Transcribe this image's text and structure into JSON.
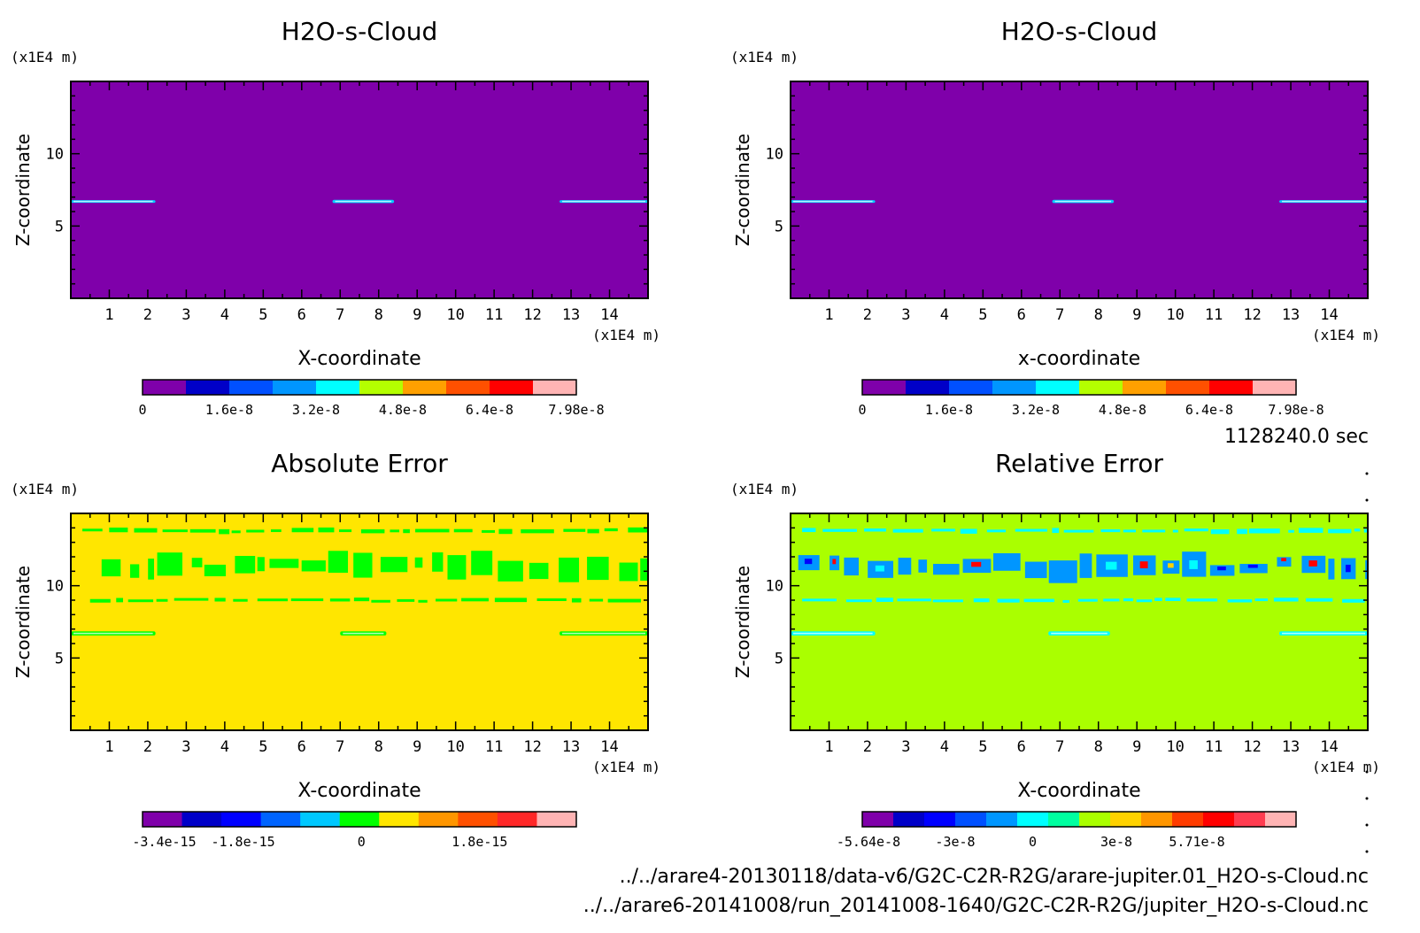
{
  "chart_data": [
    {
      "type": "heatmap",
      "title": "H2O-s-Cloud",
      "xlabel": "X-coordinate",
      "ylabel": "Z-coordinate",
      "x_unit": "(x1E4 m)",
      "y_unit": "(x1E4 m)",
      "xlim": [
        0,
        15
      ],
      "ylim": [
        0,
        15
      ],
      "x_ticks": [
        "1",
        "2",
        "3",
        "4",
        "5",
        "6",
        "7",
        "8",
        "9",
        "10",
        "11",
        "12",
        "13",
        "14"
      ],
      "y_ticks": [
        "5",
        "10"
      ],
      "background": "#7f00aa",
      "colorbar": {
        "colors": [
          "#7f00aa",
          "#0000c8",
          "#0050ff",
          "#0096ff",
          "#00ffff",
          "#b4ff00",
          "#ffa000",
          "#ff5000",
          "#ff0000",
          "#ffb4b4"
        ],
        "labels": [
          "0",
          "1.6e-8",
          "3.2e-8",
          "4.8e-8",
          "6.4e-8",
          "7.98e-8"
        ],
        "label_pos": [
          0,
          2,
          4,
          6,
          8,
          10
        ]
      },
      "features": [
        {
          "x0": 0,
          "x1": 2.2,
          "z": 6.7,
          "thick": 0.18,
          "color": "#00ccff"
        },
        {
          "x0": 6.8,
          "x1": 8.4,
          "z": 6.7,
          "thick": 0.22,
          "color": "#00ccff"
        },
        {
          "x0": 12.7,
          "x1": 15,
          "z": 6.7,
          "thick": 0.18,
          "color": "#00ccff"
        }
      ]
    },
    {
      "type": "heatmap",
      "title": "H2O-s-Cloud",
      "xlabel": "x-coordinate",
      "ylabel": "Z-coordinate",
      "x_unit": "(x1E4 m)",
      "y_unit": "(x1E4 m)",
      "xlim": [
        0,
        15
      ],
      "ylim": [
        0,
        15
      ],
      "x_ticks": [
        "1",
        "2",
        "3",
        "4",
        "5",
        "6",
        "7",
        "8",
        "9",
        "10",
        "11",
        "12",
        "13",
        "14"
      ],
      "y_ticks": [
        "5",
        "10"
      ],
      "background": "#7f00aa",
      "colorbar": {
        "colors": [
          "#7f00aa",
          "#0000c8",
          "#0050ff",
          "#0096ff",
          "#00ffff",
          "#b4ff00",
          "#ffa000",
          "#ff5000",
          "#ff0000",
          "#ffb4b4"
        ],
        "labels": [
          "0",
          "1.6e-8",
          "3.2e-8",
          "4.8e-8",
          "6.4e-8",
          "7.98e-8"
        ],
        "label_pos": [
          0,
          2,
          4,
          6,
          8,
          10
        ]
      },
      "features": [
        {
          "x0": 0,
          "x1": 2.2,
          "z": 6.7,
          "thick": 0.18,
          "color": "#00ccff"
        },
        {
          "x0": 6.8,
          "x1": 8.4,
          "z": 6.7,
          "thick": 0.22,
          "color": "#00ccff"
        },
        {
          "x0": 12.7,
          "x1": 15,
          "z": 6.7,
          "thick": 0.18,
          "color": "#00ccff"
        }
      ]
    },
    {
      "type": "heatmap",
      "title": "Absolute Error",
      "xlabel": "X-coordinate",
      "ylabel": "Z-coordinate",
      "x_unit": "(x1E4 m)",
      "y_unit": "(x1E4 m)",
      "xlim": [
        0,
        15
      ],
      "ylim": [
        0,
        15
      ],
      "x_ticks": [
        "1",
        "2",
        "3",
        "4",
        "5",
        "6",
        "7",
        "8",
        "9",
        "10",
        "11",
        "12",
        "13",
        "14"
      ],
      "y_ticks": [
        "5",
        "10"
      ],
      "background": "#ffe600",
      "colorbar": {
        "colors": [
          "#7f00aa",
          "#0000c8",
          "#0000ff",
          "#0064ff",
          "#00c8ff",
          "#00ff00",
          "#ffe600",
          "#ff9600",
          "#ff5000",
          "#ff2828",
          "#ffb4b4"
        ],
        "labels": [
          "-3.4e-15",
          "-1.8e-15",
          "0",
          "1.8e-15"
        ],
        "label_pos": [
          0.55,
          2.55,
          5.55,
          8.55
        ]
      },
      "features": [
        {
          "x0": 0.3,
          "x1": 15,
          "z": 13.8,
          "thick": 0.35,
          "color": "#00ff00",
          "broken": true
        },
        {
          "x0": 0.8,
          "x1": 15,
          "z": 11.3,
          "thick": 1.8,
          "color": "#00ff00",
          "broken": true
        },
        {
          "x0": 0.5,
          "x1": 15,
          "z": 9.0,
          "thick": 0.3,
          "color": "#00ff00",
          "broken": true
        },
        {
          "x0": 0,
          "x1": 2.2,
          "z": 6.7,
          "thick": 0.28,
          "color": "#00ff00"
        },
        {
          "x0": 7.0,
          "x1": 8.2,
          "z": 6.7,
          "thick": 0.28,
          "color": "#00ff00"
        },
        {
          "x0": 12.7,
          "x1": 15,
          "z": 6.7,
          "thick": 0.28,
          "color": "#00ff00"
        }
      ]
    },
    {
      "type": "heatmap",
      "title": "Relative Error",
      "xlabel": "X-coordinate",
      "ylabel": "Z-coordinate",
      "x_unit": "(x1E4 m)",
      "y_unit": "(x1E4 m)",
      "xlim": [
        0,
        15
      ],
      "ylim": [
        0,
        15
      ],
      "x_ticks": [
        "1",
        "2",
        "3",
        "4",
        "5",
        "6",
        "7",
        "8",
        "9",
        "10",
        "11",
        "12",
        "13",
        "14"
      ],
      "y_ticks": [
        "5",
        "10"
      ],
      "background": "#aaff00",
      "colorbar": {
        "colors": [
          "#7f00aa",
          "#0000c8",
          "#0000ff",
          "#0050ff",
          "#0096ff",
          "#00ffff",
          "#00ffa0",
          "#aaff00",
          "#ffd200",
          "#ff9600",
          "#ff3c00",
          "#ff0000",
          "#ff3c50",
          "#ffb4b4"
        ],
        "labels": [
          "-5.64e-8",
          "-3e-8",
          "0",
          "3e-8",
          "5.71e-8"
        ],
        "label_pos": [
          0.2,
          3.0,
          5.5,
          8.2,
          10.8
        ]
      },
      "features": [
        {
          "x0": 0.3,
          "x1": 15,
          "z": 13.8,
          "thick": 0.35,
          "color": "#00ffff",
          "broken": true
        },
        {
          "x0": 0.2,
          "x1": 15,
          "z": 11.3,
          "thick": 1.8,
          "color": "#0096ff",
          "broken": true
        },
        {
          "x0": 0.3,
          "x1": 15,
          "z": 9.0,
          "thick": 0.3,
          "color": "#00ffff",
          "broken": true
        },
        {
          "x0": 0,
          "x1": 2.2,
          "z": 6.7,
          "thick": 0.28,
          "color": "#00ffff"
        },
        {
          "x0": 6.7,
          "x1": 8.3,
          "z": 6.7,
          "thick": 0.28,
          "color": "#00ffff"
        },
        {
          "x0": 12.7,
          "x1": 15,
          "z": 6.7,
          "thick": 0.28,
          "color": "#00ffff"
        }
      ]
    }
  ],
  "time_label": "1128240.0 sec",
  "files": [
    "../../arare4-20130118/data-v6/G2C-C2R-R2G/arare-jupiter.01_H2O-s-Cloud.nc",
    "../../arare6-20141008/run_20141008-1640/G2C-C2R-R2G/jupiter_H2O-s-Cloud.nc"
  ]
}
